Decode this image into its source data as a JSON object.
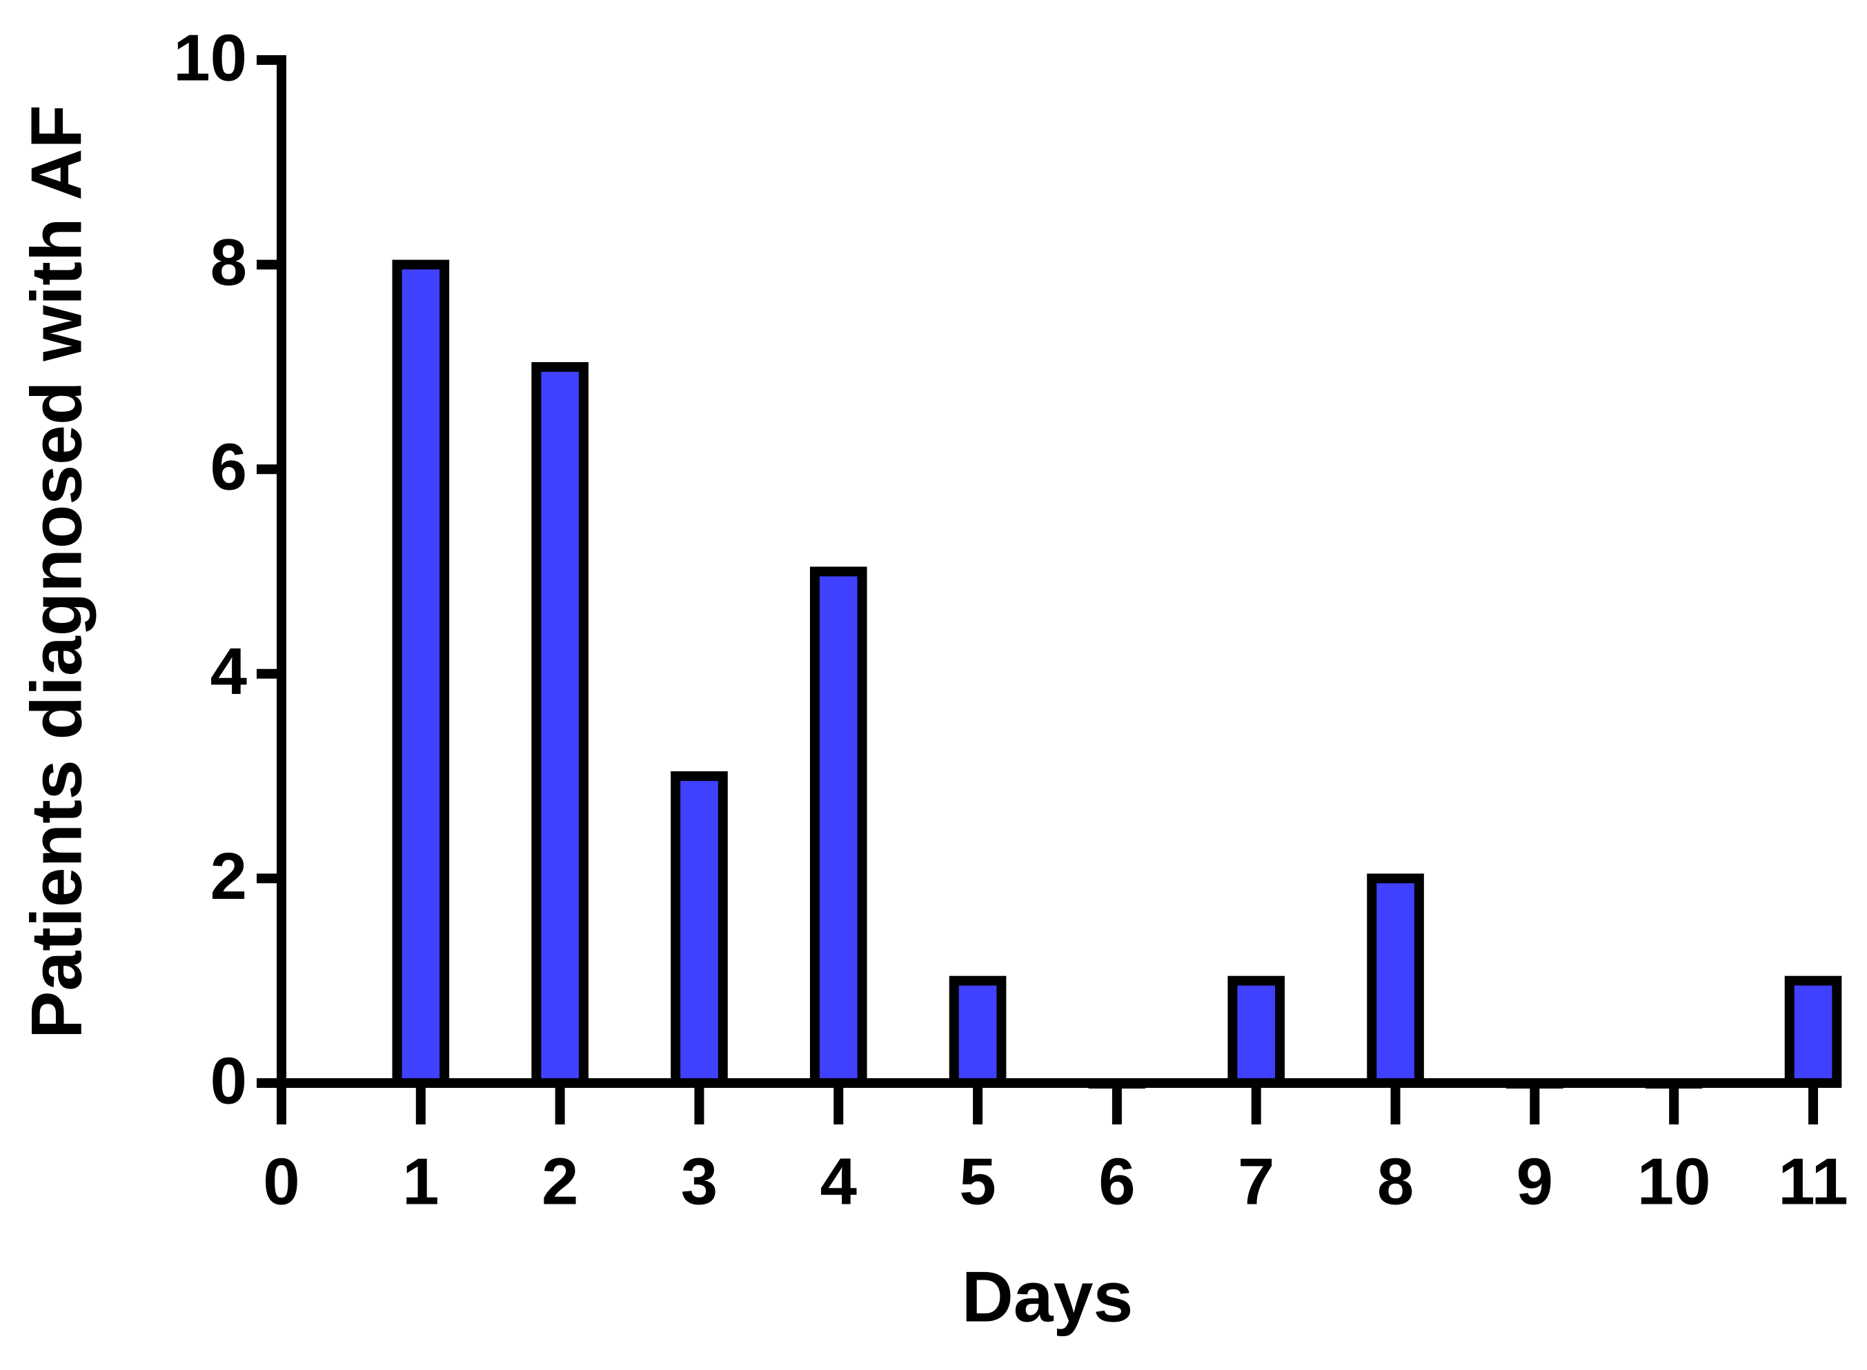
{
  "chart_data": {
    "type": "bar",
    "x_label": "Days",
    "y_label": "Patients diagnosed with AF",
    "x": [
      1,
      2,
      3,
      4,
      5,
      6,
      7,
      8,
      9,
      10,
      11
    ],
    "values": [
      8,
      7,
      3,
      5,
      1,
      0,
      1,
      2,
      0,
      0,
      1
    ],
    "color": "#4040ff",
    "xlim": [
      0,
      11
    ],
    "xticks": [
      0,
      1,
      2,
      3,
      4,
      5,
      6,
      7,
      8,
      9,
      10,
      11
    ],
    "ylim": [
      0,
      10
    ],
    "yticks": [
      0,
      2,
      4,
      6,
      8,
      10
    ],
    "grid": false
  }
}
